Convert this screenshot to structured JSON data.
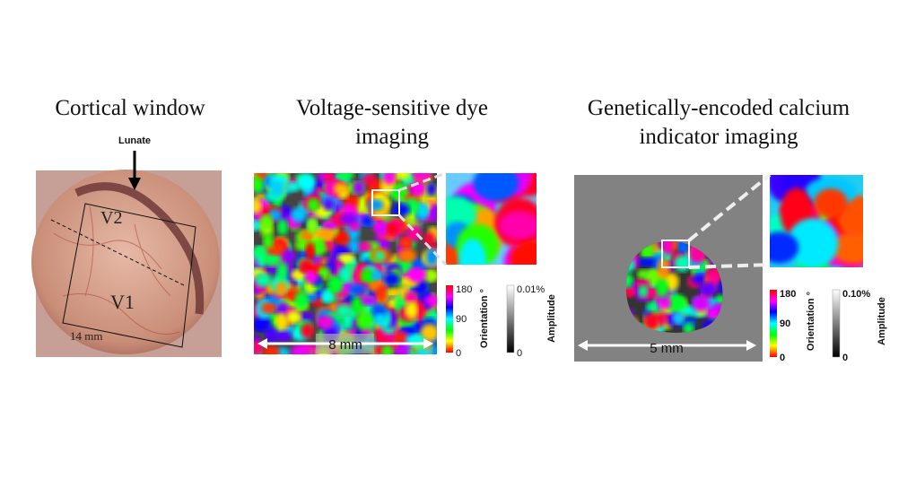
{
  "panels": [
    {
      "title": "Cortical window",
      "labels": {
        "lunate": "Lunate",
        "v2": "V2",
        "v1": "V1",
        "scale": "14 mm"
      }
    },
    {
      "title_lines": [
        "Voltage-sensitive dye",
        "imaging"
      ],
      "scale": "8 mm",
      "orientation_bar": {
        "label": "Orientation °",
        "ticks": [
          180,
          90,
          0
        ]
      },
      "amplitude_bar": {
        "label": "Amplitude",
        "ticks": [
          "0.01%",
          0
        ]
      }
    },
    {
      "title_lines": [
        "Genetically-encoded calcium",
        "indicator imaging"
      ],
      "scale": "5 mm",
      "orientation_bar": {
        "label": "Orientation °",
        "ticks": [
          180,
          90,
          0
        ]
      },
      "amplitude_bar": {
        "label": "Amplitude",
        "ticks": [
          "0.10%",
          0
        ]
      }
    }
  ]
}
